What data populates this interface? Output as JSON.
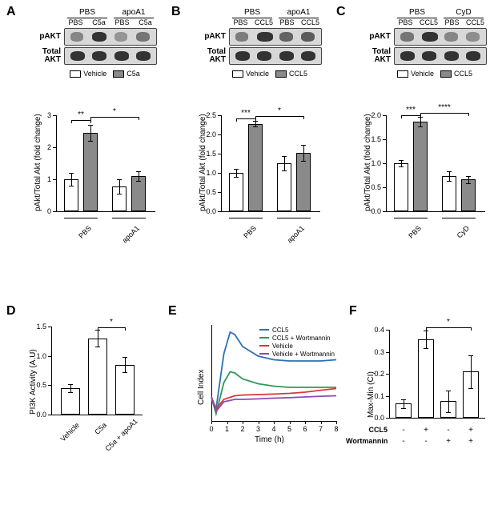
{
  "colors": {
    "vehicle_fill": "#ffffff",
    "treat_fill": "#8a8a8a",
    "line_ccl5": "#2e6fb5",
    "line_ccl5_wort": "#2e9a55",
    "line_vehicle": "#d73838",
    "line_veh_wort": "#8b4ab2",
    "band_dark": "#2f2f2f"
  },
  "panelA": {
    "label": "A",
    "top_groups": [
      "PBS",
      "apoA1"
    ],
    "sub_groups": [
      "PBS",
      "C5a",
      "PBS",
      "C5a"
    ],
    "row_labels": [
      "pAKT",
      "Total\nAKT"
    ],
    "legend": {
      "veh": "Vehicle",
      "treat": "C5a"
    },
    "chart": {
      "ylabel": "pAkt/Total Akt (fold change)",
      "yticks": [
        0,
        1,
        2,
        3
      ],
      "ymax": 3,
      "bars": [
        {
          "v": 1.0,
          "err": 0.2,
          "fill": "veh"
        },
        {
          "v": 2.45,
          "err": 0.25,
          "fill": "treat"
        },
        {
          "v": 0.78,
          "err": 0.22,
          "fill": "veh"
        },
        {
          "v": 1.1,
          "err": 0.15,
          "fill": "treat"
        }
      ],
      "xgroups": [
        "PBS",
        "apoA1"
      ],
      "sigs": [
        {
          "from": 0,
          "to": 1,
          "y": 2.85,
          "label": "**"
        },
        {
          "from": 1,
          "to": 3,
          "y": 2.95,
          "label": "*"
        }
      ]
    }
  },
  "panelB": {
    "label": "B",
    "top_groups": [
      "PBS",
      "apoA1"
    ],
    "sub_groups": [
      "PBS",
      "CCL5",
      "PBS",
      "CCL5"
    ],
    "row_labels": [
      "pAKT",
      "Total\nAKT"
    ],
    "legend": {
      "veh": "Vehicle",
      "treat": "CCL5"
    },
    "chart": {
      "ylabel": "pAkt/Total Akt (fold change)",
      "yticks": [
        0.0,
        0.5,
        1.0,
        1.5,
        2.0,
        2.5
      ],
      "ymax": 2.5,
      "bars": [
        {
          "v": 1.0,
          "err": 0.1,
          "fill": "veh"
        },
        {
          "v": 2.28,
          "err": 0.08,
          "fill": "treat"
        },
        {
          "v": 1.25,
          "err": 0.18,
          "fill": "veh"
        },
        {
          "v": 1.52,
          "err": 0.2,
          "fill": "treat"
        }
      ],
      "xgroups": [
        "PBS",
        "apoA1"
      ],
      "sigs": [
        {
          "from": 0,
          "to": 1,
          "y": 2.42,
          "label": "***"
        },
        {
          "from": 1,
          "to": 3,
          "y": 2.48,
          "label": "*"
        }
      ]
    }
  },
  "panelC": {
    "label": "C",
    "top_groups": [
      "PBS",
      "CyD"
    ],
    "sub_groups": [
      "PBS",
      "CCL5",
      "PBS",
      "CCL5"
    ],
    "row_labels": [
      "pAKT",
      "Total\nAKT"
    ],
    "legend": {
      "veh": "Vehicle",
      "treat": "CCL5"
    },
    "chart": {
      "ylabel": "pAkt/Total Akt (fold change)",
      "yticks": [
        0.0,
        0.5,
        1.0,
        1.5,
        2.0
      ],
      "ymax": 2.0,
      "bars": [
        {
          "v": 1.0,
          "err": 0.07,
          "fill": "veh"
        },
        {
          "v": 1.86,
          "err": 0.1,
          "fill": "treat"
        },
        {
          "v": 0.74,
          "err": 0.1,
          "fill": "veh"
        },
        {
          "v": 0.66,
          "err": 0.08,
          "fill": "treat"
        }
      ],
      "xgroups": [
        "PBS",
        "CyD"
      ],
      "sigs": [
        {
          "from": 0,
          "to": 1,
          "y": 2.0,
          "label": "***"
        },
        {
          "from": 1,
          "to": 3,
          "y": 2.05,
          "label": "****"
        }
      ]
    }
  },
  "panelD": {
    "label": "D",
    "chart": {
      "ylabel": "PI3K Activity (A.U)",
      "yticks": [
        0.0,
        0.5,
        1.0,
        1.5
      ],
      "ymax": 1.5,
      "bars": [
        {
          "v": 0.45,
          "err": 0.07,
          "fill": "veh",
          "label": "Vehicle"
        },
        {
          "v": 1.3,
          "err": 0.14,
          "fill": "veh",
          "label": "C5a"
        },
        {
          "v": 0.85,
          "err": 0.13,
          "fill": "veh",
          "label": "C5a + apoA1"
        }
      ],
      "sigs": [
        {
          "from": 1,
          "to": 2,
          "y": 1.48,
          "label": "*"
        }
      ]
    }
  },
  "panelE": {
    "label": "E",
    "legend": [
      "CCL5",
      "CCL5 + Wortmannin",
      "Vehicle",
      "Vehicle + Wortmannin"
    ],
    "xlabel": "Time (h)",
    "ylabel": "Cell Index",
    "xticks": [
      0,
      1,
      2,
      3,
      4,
      5,
      6,
      7,
      8
    ],
    "xlim": [
      0,
      8
    ],
    "ylim": [
      -0.1,
      0.3
    ],
    "series": {
      "ccl5": [
        [
          0,
          0
        ],
        [
          0.3,
          -0.05
        ],
        [
          0.8,
          0.18
        ],
        [
          1.2,
          0.27
        ],
        [
          1.5,
          0.26
        ],
        [
          2,
          0.21
        ],
        [
          3,
          0.17
        ],
        [
          4,
          0.155
        ],
        [
          5,
          0.15
        ],
        [
          6,
          0.15
        ],
        [
          7,
          0.15
        ],
        [
          8,
          0.155
        ]
      ],
      "ccl5_wort": [
        [
          0,
          0
        ],
        [
          0.3,
          -0.07
        ],
        [
          0.8,
          0.06
        ],
        [
          1.2,
          0.105
        ],
        [
          1.5,
          0.1
        ],
        [
          2,
          0.075
        ],
        [
          3,
          0.055
        ],
        [
          4,
          0.045
        ],
        [
          5,
          0.04
        ],
        [
          6,
          0.04
        ],
        [
          7,
          0.04
        ],
        [
          8,
          0.04
        ]
      ],
      "vehicle": [
        [
          0,
          0
        ],
        [
          0.3,
          -0.05
        ],
        [
          0.8,
          -0.01
        ],
        [
          1.5,
          0.005
        ],
        [
          2,
          0.008
        ],
        [
          3,
          0.01
        ],
        [
          4,
          0.012
        ],
        [
          5,
          0.015
        ],
        [
          6,
          0.02
        ],
        [
          7,
          0.028
        ],
        [
          8,
          0.035
        ]
      ],
      "veh_wort": [
        [
          0,
          0
        ],
        [
          0.3,
          -0.06
        ],
        [
          0.8,
          -0.02
        ],
        [
          1.5,
          -0.01
        ],
        [
          2,
          -0.01
        ],
        [
          3,
          -0.008
        ],
        [
          4,
          -0.005
        ],
        [
          5,
          -0.003
        ],
        [
          6,
          0
        ],
        [
          7,
          0.003
        ],
        [
          8,
          0.005
        ]
      ]
    }
  },
  "panelF": {
    "label": "F",
    "ylabel": "Max-Min (CI)",
    "yticks": [
      0.0,
      0.1,
      0.2,
      0.3,
      0.4
    ],
    "ymax": 0.4,
    "bars": [
      {
        "v": 0.065,
        "err": 0.02,
        "fill": "veh"
      },
      {
        "v": 0.355,
        "err": 0.04,
        "fill": "veh"
      },
      {
        "v": 0.075,
        "err": 0.05,
        "fill": "veh"
      },
      {
        "v": 0.21,
        "err": 0.075,
        "fill": "veh"
      }
    ],
    "sigs": [
      {
        "from": 1,
        "to": 3,
        "y": 0.41,
        "label": "*"
      }
    ],
    "xrows": [
      {
        "label": "CCL5",
        "vals": [
          "-",
          "+",
          "-",
          "+"
        ]
      },
      {
        "label": "Wortmannin",
        "vals": [
          "-",
          "-",
          "+",
          "+"
        ]
      }
    ]
  }
}
